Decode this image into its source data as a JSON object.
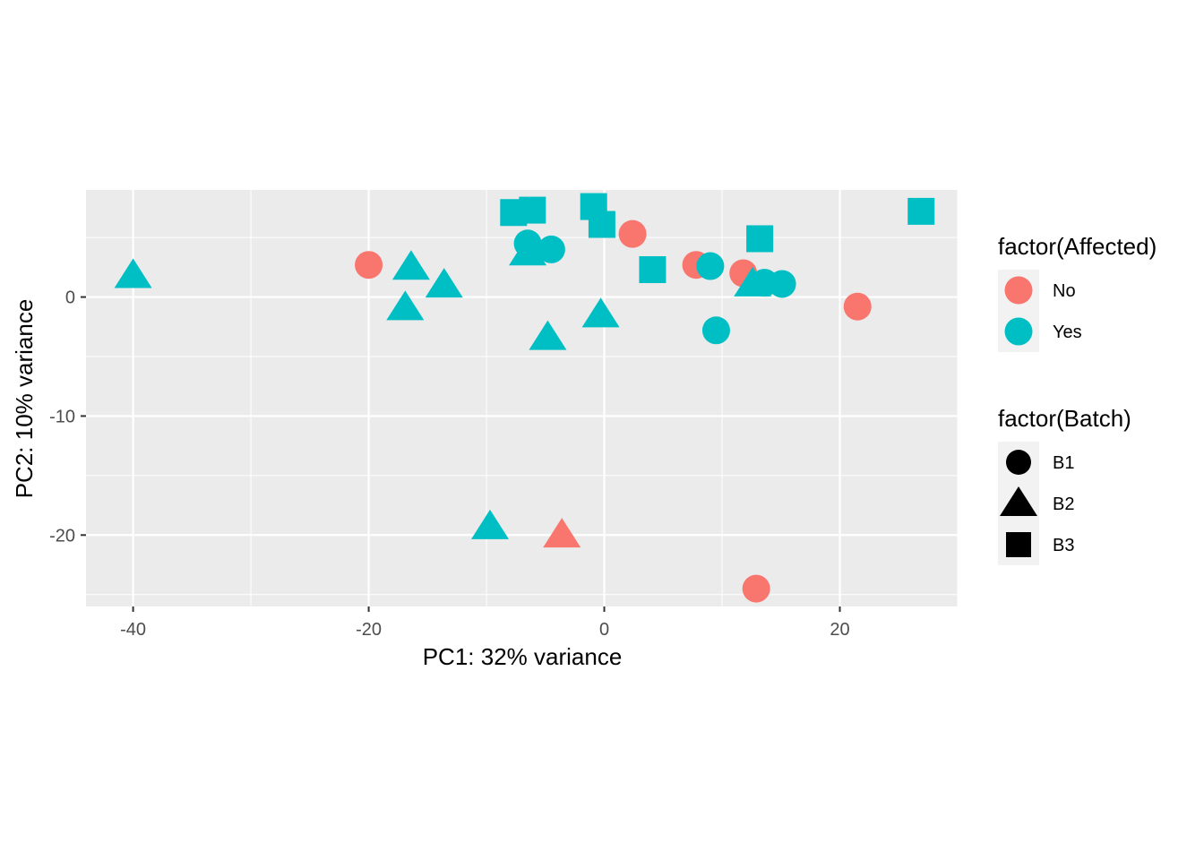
{
  "chart_data": {
    "type": "scatter",
    "title": "",
    "xlabel": "PC1: 32% variance",
    "ylabel": "PC2: 10% variance",
    "xlim": [
      -44,
      30
    ],
    "ylim": [
      -26,
      9
    ],
    "x_ticks": [
      -40,
      -20,
      0,
      20
    ],
    "x_tick_labels": [
      "-40",
      "-20",
      "0",
      "20"
    ],
    "y_ticks": [
      -20,
      -10,
      0
    ],
    "y_tick_labels": [
      "-20",
      "-10",
      "0"
    ],
    "grid": true,
    "legends": [
      {
        "title": "factor(Affected)",
        "aesthetic": "color",
        "entries": [
          {
            "label": "No",
            "color": "#F8766D"
          },
          {
            "label": "Yes",
            "color": "#00BFC4"
          }
        ]
      },
      {
        "title": "factor(Batch)",
        "aesthetic": "shape",
        "entries": [
          {
            "label": "B1",
            "shape": "circle"
          },
          {
            "label": "B2",
            "shape": "triangle"
          },
          {
            "label": "B3",
            "shape": "square"
          }
        ]
      }
    ],
    "legend_position": "right",
    "points": [
      {
        "x": -20.0,
        "y": 2.7,
        "affected": "No",
        "batch": "B1"
      },
      {
        "x": 2.4,
        "y": 5.3,
        "affected": "No",
        "batch": "B1"
      },
      {
        "x": 7.8,
        "y": 2.7,
        "affected": "No",
        "batch": "B1"
      },
      {
        "x": 11.8,
        "y": 2.0,
        "affected": "No",
        "batch": "B1"
      },
      {
        "x": 21.5,
        "y": -0.8,
        "affected": "No",
        "batch": "B1"
      },
      {
        "x": 12.9,
        "y": -24.5,
        "affected": "No",
        "batch": "B1"
      },
      {
        "x": -3.6,
        "y": -20.1,
        "affected": "No",
        "batch": "B2"
      },
      {
        "x": -6.5,
        "y": 4.5,
        "affected": "Yes",
        "batch": "B1"
      },
      {
        "x": -4.5,
        "y": 4.0,
        "affected": "Yes",
        "batch": "B1"
      },
      {
        "x": 9.0,
        "y": 2.6,
        "affected": "Yes",
        "batch": "B1"
      },
      {
        "x": 13.6,
        "y": 1.2,
        "affected": "Yes",
        "batch": "B1"
      },
      {
        "x": 15.1,
        "y": 1.1,
        "affected": "Yes",
        "batch": "B1"
      },
      {
        "x": 9.5,
        "y": -2.8,
        "affected": "Yes",
        "batch": "B1"
      },
      {
        "x": -40.0,
        "y": 1.7,
        "affected": "Yes",
        "batch": "B2"
      },
      {
        "x": -16.4,
        "y": 2.4,
        "affected": "Yes",
        "batch": "B2"
      },
      {
        "x": -13.6,
        "y": 0.9,
        "affected": "Yes",
        "batch": "B2"
      },
      {
        "x": -16.9,
        "y": -1.0,
        "affected": "Yes",
        "batch": "B2"
      },
      {
        "x": -6.5,
        "y": 3.6,
        "affected": "Yes",
        "batch": "B2"
      },
      {
        "x": -0.3,
        "y": -1.6,
        "affected": "Yes",
        "batch": "B2"
      },
      {
        "x": -4.8,
        "y": -3.5,
        "affected": "Yes",
        "batch": "B2"
      },
      {
        "x": -9.7,
        "y": -19.4,
        "affected": "Yes",
        "batch": "B2"
      },
      {
        "x": 12.6,
        "y": 1.0,
        "affected": "Yes",
        "batch": "B2"
      },
      {
        "x": -7.7,
        "y": 7.1,
        "affected": "Yes",
        "batch": "B3"
      },
      {
        "x": -6.1,
        "y": 7.3,
        "affected": "Yes",
        "batch": "B3"
      },
      {
        "x": -0.9,
        "y": 7.6,
        "affected": "Yes",
        "batch": "B3"
      },
      {
        "x": -0.2,
        "y": 6.1,
        "affected": "Yes",
        "batch": "B3"
      },
      {
        "x": 4.1,
        "y": 2.3,
        "affected": "Yes",
        "batch": "B3"
      },
      {
        "x": 13.2,
        "y": 4.9,
        "affected": "Yes",
        "batch": "B3"
      },
      {
        "x": 26.9,
        "y": 7.2,
        "affected": "Yes",
        "batch": "B3"
      }
    ]
  },
  "theme": {
    "panel_bg": "#EBEBEB",
    "grid_color": "#FFFFFF",
    "legend_key_bg": "#F2F2F2"
  }
}
